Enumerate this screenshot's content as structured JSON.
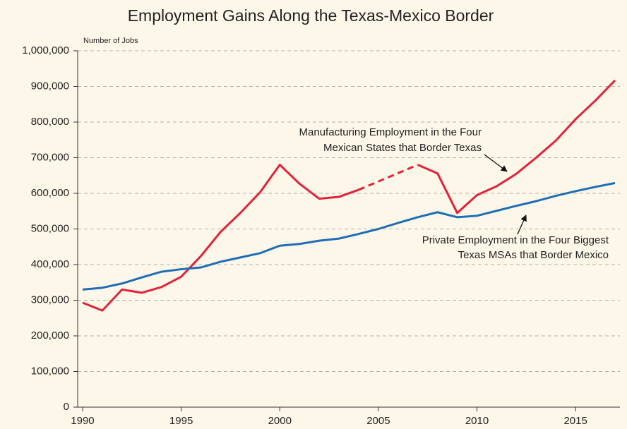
{
  "chart_data": {
    "type": "line",
    "title": "Employment Gains Along the Texas-Mexico Border",
    "y_label": "Number of Jobs",
    "x": [
      1990,
      1991,
      1992,
      1993,
      1994,
      1995,
      1996,
      1997,
      1998,
      1999,
      2000,
      2001,
      2002,
      2003,
      2004,
      2005,
      2006,
      2007,
      2008,
      2009,
      2010,
      2011,
      2012,
      2013,
      2014,
      2015,
      2016,
      2017
    ],
    "series": [
      {
        "color": "#e0233a",
        "gaps": "dashed",
        "values": [
          293000,
          271000,
          330000,
          321000,
          337000,
          366000,
          424000,
          492000,
          545000,
          603000,
          680000,
          627000,
          585000,
          590000,
          610000,
          null,
          null,
          680000,
          656000,
          545000,
          595000,
          620000,
          655000,
          700000,
          748000,
          808000,
          860000,
          917000
        ]
      },
      {
        "color": "#1f6db5",
        "gaps": "dashed",
        "values": [
          330000,
          335000,
          347000,
          364000,
          380000,
          387000,
          392000,
          408000,
          420000,
          432000,
          453000,
          458000,
          467000,
          473000,
          486000,
          500000,
          517000,
          533000,
          547000,
          533000,
          537000,
          551000,
          565000,
          578000,
          593000,
          606000,
          618000,
          629000
        ]
      }
    ],
    "annotations": [
      {
        "text": [
          "Manufacturing Employment in the Four",
          "Mexican States that Border Texas"
        ]
      },
      {
        "text": [
          "Private Employment in the Four Biggest",
          "Texas MSAs that Border Mexico"
        ]
      }
    ],
    "xlim": [
      1989.75,
      2017.25
    ],
    "xticks": [
      1990,
      1995,
      2000,
      2005,
      2010,
      2015
    ],
    "ylim": [
      0,
      1000000
    ],
    "yticks": [
      {
        "value": 0,
        "label": "0"
      },
      {
        "value": 100000,
        "label": "100,000"
      },
      {
        "value": 200000,
        "label": "200,000"
      },
      {
        "value": 300000,
        "label": "300,000"
      },
      {
        "value": 400000,
        "label": "400,000"
      },
      {
        "value": 500000,
        "label": "500,000"
      },
      {
        "value": 600000,
        "label": "600,000"
      },
      {
        "value": 700000,
        "label": "700,000"
      },
      {
        "value": 800000,
        "label": "800,000"
      },
      {
        "value": 900000,
        "label": "900,000"
      },
      {
        "value": 1000000,
        "label": "1,000,000"
      }
    ],
    "grid": true
  }
}
